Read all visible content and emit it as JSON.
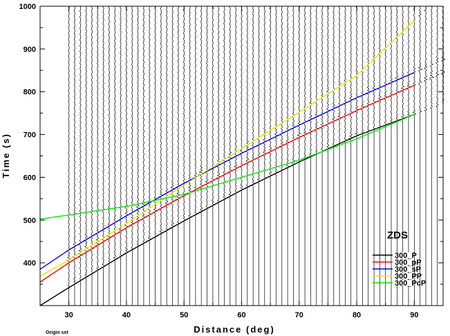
{
  "chart_data": {
    "type": "line",
    "title": "",
    "xlabel": "Distance (deg)",
    "ylabel": "Time (s)",
    "xlim": [
      25,
      95
    ],
    "ylim": [
      300,
      1000
    ],
    "x_ticks": [
      30,
      40,
      50,
      60,
      70,
      80,
      90
    ],
    "y_ticks": [
      400,
      500,
      600,
      700,
      800,
      900,
      1000
    ],
    "legend_title": "ZDS",
    "legend_position": "bottom-right",
    "grid": false,
    "series": [
      {
        "name": "300_P",
        "color": "#000000",
        "x": [
          25,
          30,
          40,
          50,
          60,
          70,
          80,
          90
        ],
        "y": [
          300,
          342,
          423,
          498,
          570,
          636,
          697,
          747
        ]
      },
      {
        "name": "300_pP",
        "color": "#ff0000",
        "x": [
          25,
          30,
          40,
          50,
          60,
          70,
          80,
          90
        ],
        "y": [
          355,
          400,
          482,
          557,
          627,
          693,
          756,
          815
        ]
      },
      {
        "name": "300_sP",
        "color": "#0000ff",
        "x": [
          25,
          30,
          40,
          50,
          60,
          70,
          80,
          90
        ],
        "y": [
          385,
          430,
          510,
          586,
          656,
          722,
          786,
          845
        ]
      },
      {
        "name": "300_PP",
        "color": "#e6e600",
        "x": [
          25,
          30,
          40,
          50,
          60,
          70,
          80,
          90
        ],
        "y": [
          368,
          407,
          492,
          582,
          667,
          752,
          838,
          966
        ]
      },
      {
        "name": "300_PcP",
        "color": "#00ee00",
        "x": [
          25,
          30,
          40,
          50,
          60,
          70,
          80,
          90
        ],
        "y": [
          502,
          512,
          532,
          560,
          600,
          640,
          690,
          747
        ]
      }
    ],
    "traces": {
      "distances_start": 30,
      "distances_end": 95,
      "distance_step": 1,
      "record_start_time": 300,
      "record_end_time": 1000
    }
  },
  "footer_text": "Origin set"
}
